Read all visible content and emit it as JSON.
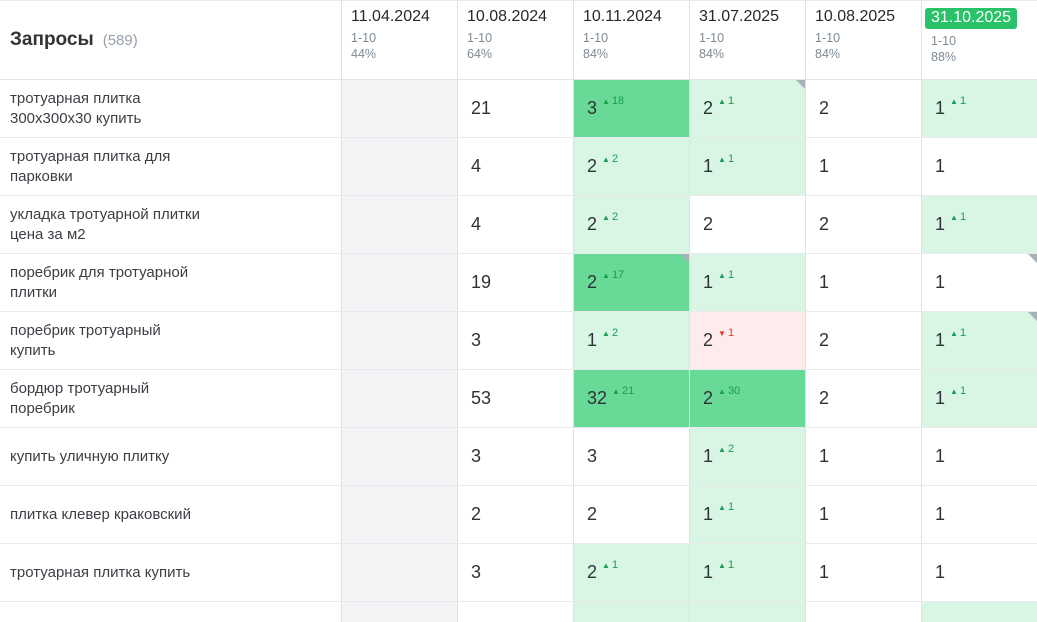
{
  "header": {
    "title": "Запросы",
    "count": "(589)"
  },
  "columns": [
    {
      "date": "11.04.2024",
      "range": "1-10",
      "percent": "44%",
      "highlight": false
    },
    {
      "date": "10.08.2024",
      "range": "1-10",
      "percent": "64%",
      "highlight": false
    },
    {
      "date": "10.11.2024",
      "range": "1-10",
      "percent": "84%",
      "highlight": false
    },
    {
      "date": "31.07.2025",
      "range": "1-10",
      "percent": "84%",
      "highlight": false
    },
    {
      "date": "10.08.2025",
      "range": "1-10",
      "percent": "84%",
      "highlight": false
    },
    {
      "date": "31.10.2025",
      "range": "1-10",
      "percent": "88%",
      "highlight": true
    }
  ],
  "rows": [
    {
      "query": "тротуарная плитка\n300x300x30 купить",
      "cells": [
        {
          "bg": "empty"
        },
        {
          "bg": "white",
          "value": "21"
        },
        {
          "bg": "strong",
          "value": "3",
          "delta": "18",
          "dir": "up"
        },
        {
          "bg": "light",
          "value": "2",
          "delta": "1",
          "dir": "up",
          "corner": true
        },
        {
          "bg": "white",
          "value": "2"
        },
        {
          "bg": "light",
          "value": "1",
          "delta": "1",
          "dir": "up"
        }
      ]
    },
    {
      "query": "тротуарная плитка для\nпарковки",
      "cells": [
        {
          "bg": "empty"
        },
        {
          "bg": "white",
          "value": "4"
        },
        {
          "bg": "light",
          "value": "2",
          "delta": "2",
          "dir": "up"
        },
        {
          "bg": "light",
          "value": "1",
          "delta": "1",
          "dir": "up"
        },
        {
          "bg": "white",
          "value": "1"
        },
        {
          "bg": "white",
          "value": "1"
        }
      ]
    },
    {
      "query": "укладка тротуарной плитки\nцена за м2",
      "cells": [
        {
          "bg": "empty"
        },
        {
          "bg": "white",
          "value": "4"
        },
        {
          "bg": "light",
          "value": "2",
          "delta": "2",
          "dir": "up"
        },
        {
          "bg": "white",
          "value": "2"
        },
        {
          "bg": "white",
          "value": "2"
        },
        {
          "bg": "light",
          "value": "1",
          "delta": "1",
          "dir": "up"
        }
      ]
    },
    {
      "query": "поребрик для тротуарной\nплитки",
      "cells": [
        {
          "bg": "empty"
        },
        {
          "bg": "white",
          "value": "19"
        },
        {
          "bg": "strong",
          "value": "2",
          "delta": "17",
          "dir": "up",
          "corner": true
        },
        {
          "bg": "light",
          "value": "1",
          "delta": "1",
          "dir": "up"
        },
        {
          "bg": "white",
          "value": "1"
        },
        {
          "bg": "white",
          "value": "1",
          "corner": true
        }
      ]
    },
    {
      "query": "поребрик тротуарный\nкупить",
      "cells": [
        {
          "bg": "empty"
        },
        {
          "bg": "white",
          "value": "3"
        },
        {
          "bg": "light",
          "value": "1",
          "delta": "2",
          "dir": "up"
        },
        {
          "bg": "pink",
          "value": "2",
          "delta": "1",
          "dir": "down"
        },
        {
          "bg": "white",
          "value": "2"
        },
        {
          "bg": "light",
          "value": "1",
          "delta": "1",
          "dir": "up",
          "corner": true
        }
      ]
    },
    {
      "query": "бордюр тротуарный\nпоребрик",
      "cells": [
        {
          "bg": "empty"
        },
        {
          "bg": "white",
          "value": "53"
        },
        {
          "bg": "strong",
          "value": "32",
          "delta": "21",
          "dir": "up"
        },
        {
          "bg": "strong",
          "value": "2",
          "delta": "30",
          "dir": "up"
        },
        {
          "bg": "white",
          "value": "2"
        },
        {
          "bg": "light",
          "value": "1",
          "delta": "1",
          "dir": "up"
        }
      ]
    },
    {
      "query": "купить уличную плитку",
      "cells": [
        {
          "bg": "empty"
        },
        {
          "bg": "white",
          "value": "3"
        },
        {
          "bg": "white",
          "value": "3"
        },
        {
          "bg": "light",
          "value": "1",
          "delta": "2",
          "dir": "up"
        },
        {
          "bg": "white",
          "value": "1"
        },
        {
          "bg": "white",
          "value": "1"
        }
      ]
    },
    {
      "query": "плитка клевер краковский",
      "cells": [
        {
          "bg": "empty"
        },
        {
          "bg": "white",
          "value": "2"
        },
        {
          "bg": "white",
          "value": "2"
        },
        {
          "bg": "light",
          "value": "1",
          "delta": "1",
          "dir": "up"
        },
        {
          "bg": "white",
          "value": "1"
        },
        {
          "bg": "white",
          "value": "1"
        }
      ]
    },
    {
      "query": "тротуарная плитка купить",
      "cells": [
        {
          "bg": "empty"
        },
        {
          "bg": "white",
          "value": "3"
        },
        {
          "bg": "light",
          "value": "2",
          "delta": "1",
          "dir": "up"
        },
        {
          "bg": "light",
          "value": "1",
          "delta": "1",
          "dir": "up"
        },
        {
          "bg": "white",
          "value": "1"
        },
        {
          "bg": "white",
          "value": "1"
        }
      ]
    }
  ],
  "partial_row": {
    "cells": [
      "empty",
      "white",
      "light",
      "light",
      "white",
      "light"
    ]
  },
  "icons": {
    "up_arrow": "▲",
    "down_arrow": "▼"
  },
  "colors": {
    "strong_green": "#69d998",
    "light_green": "#d9f6e5",
    "pink": "#fdeceb",
    "empty_cell": "#f3f4f6",
    "badge_green": "#29c269",
    "up_delta": "#1a9d55",
    "down_delta": "#e03a26",
    "column_border": "#d8e2ea",
    "row_border": "#e8eaed"
  }
}
